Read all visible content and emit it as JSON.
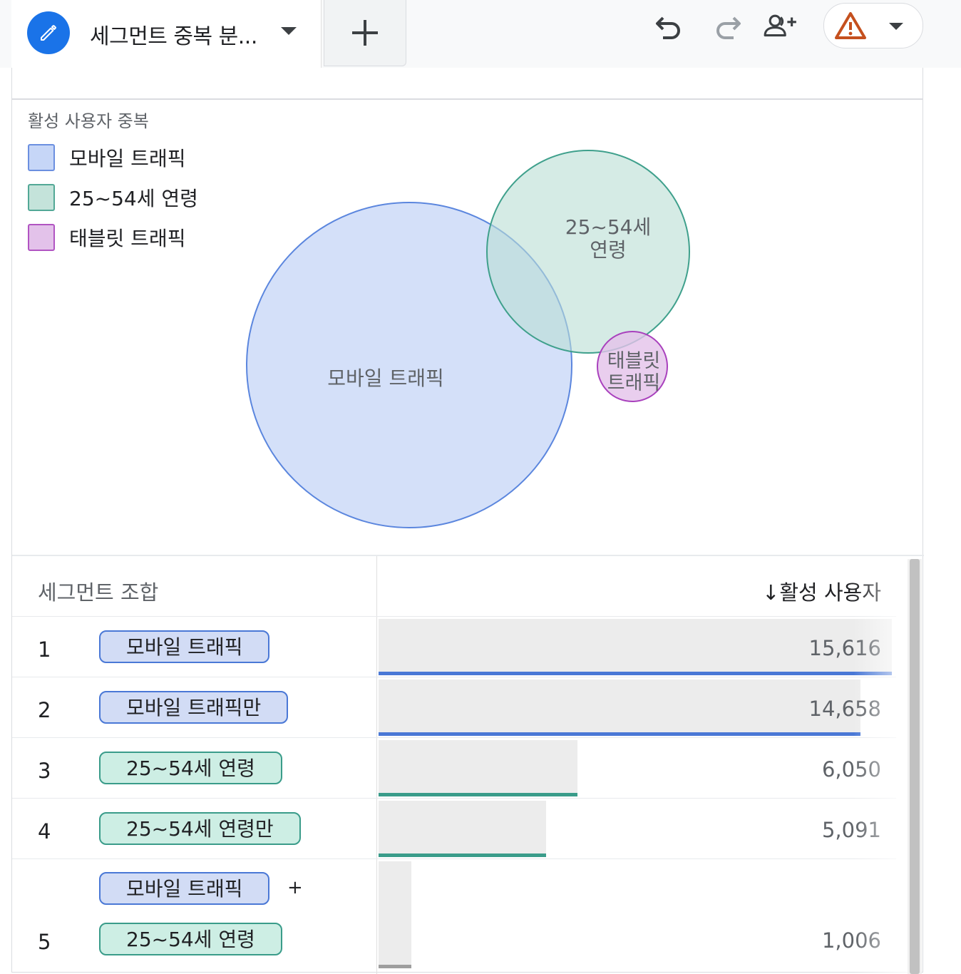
{
  "tab": {
    "title": "세그먼트 중복 분...",
    "add_label": "+"
  },
  "toolbar": {
    "undo_icon": "undo-icon",
    "redo_icon": "redo-icon",
    "share_icon": "add-person-icon",
    "warning_icon": "warning-icon"
  },
  "viz": {
    "title": "활성 사용자 중복",
    "legend": [
      {
        "label": "모바일 트래픽",
        "color": "#c6d6f7",
        "border": "#6b8fe0"
      },
      {
        "label": "25~54세 연령",
        "color": "#c4e3da",
        "border": "#52a896"
      },
      {
        "label": "태블릿 트래픽",
        "color": "#e3c2ea",
        "border": "#b154c2"
      }
    ],
    "circles": [
      {
        "label": "모바일 트래픽"
      },
      {
        "label_line1": "25~54세",
        "label_line2": "연령"
      },
      {
        "label_line1": "태블릿",
        "label_line2": "트래픽"
      }
    ]
  },
  "table": {
    "col_segment": "세그먼트 조합",
    "col_metric": "↓활성 사용자",
    "rows": [
      {
        "rank": "1",
        "chips": [
          "모바일 트래픽"
        ],
        "value": "15,616",
        "fraction": 1.0,
        "color": "#4a78d6"
      },
      {
        "rank": "2",
        "chips": [
          "모바일 트래픽만"
        ],
        "value": "14,658",
        "fraction": 0.9387,
        "color": "#4a78d6"
      },
      {
        "rank": "3",
        "chips": [
          "25~54세 연령"
        ],
        "value": "6,050",
        "fraction": 0.3874,
        "color": "#3a9c8a"
      },
      {
        "rank": "4",
        "chips": [
          "25~54세 연령만"
        ],
        "value": "5,091",
        "fraction": 0.326,
        "color": "#3a9c8a"
      },
      {
        "rank": "5",
        "chips": [
          "모바일 트래픽",
          "25~54세 연령"
        ],
        "joiner": "+",
        "value": "1,006",
        "fraction": 0.0644,
        "color": "#9e9e9e"
      }
    ]
  }
}
